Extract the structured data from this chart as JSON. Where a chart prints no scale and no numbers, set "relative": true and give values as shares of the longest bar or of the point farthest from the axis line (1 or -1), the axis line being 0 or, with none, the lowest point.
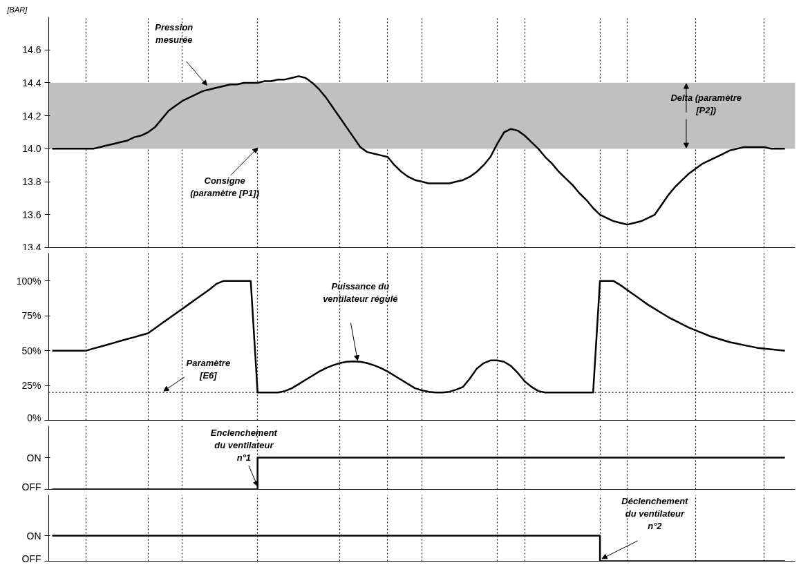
{
  "chart_data": [
    {
      "type": "line",
      "ylabel": "[BAR]",
      "categories": [
        null,
        null,
        null,
        null,
        null,
        null,
        null,
        null,
        null,
        null,
        null,
        null,
        null,
        null,
        null,
        null,
        null,
        null,
        null,
        null,
        null,
        null,
        null,
        null,
        null,
        null,
        null,
        null,
        null,
        null,
        null,
        null,
        null,
        null,
        null,
        null,
        null,
        null,
        null,
        null,
        null,
        null,
        null,
        null,
        null,
        null,
        null,
        null,
        null,
        null,
        null,
        null,
        null,
        null,
        null,
        null,
        null,
        null,
        null,
        null,
        null,
        null,
        null,
        null,
        null,
        null,
        null,
        null,
        null,
        null,
        null,
        null,
        null,
        null,
        null,
        null,
        null,
        null,
        null,
        null,
        null,
        null,
        null,
        null,
        null,
        null,
        null,
        null,
        null,
        null,
        null,
        null,
        null,
        null,
        null,
        null,
        null,
        null,
        null,
        null,
        null,
        null,
        null,
        null,
        null,
        null,
        null,
        null
      ],
      "series": [
        {
          "color": "#000000",
          "values": [
            14.0,
            14.0,
            14.0,
            14.0,
            14.0,
            14.0,
            14.0,
            14.01,
            14.02,
            14.03,
            14.04,
            14.05,
            14.07,
            14.08,
            14.1,
            14.13,
            14.18,
            14.23,
            14.26,
            14.29,
            14.31,
            14.33,
            14.35,
            14.36,
            14.37,
            14.38,
            14.39,
            14.39,
            14.4,
            14.4,
            14.4,
            14.41,
            14.41,
            14.42,
            14.42,
            14.43,
            14.44,
            14.43,
            14.4,
            14.36,
            14.31,
            14.25,
            14.19,
            14.13,
            14.07,
            14.01,
            13.98,
            13.97,
            13.96,
            13.95,
            13.9,
            13.86,
            13.83,
            13.81,
            13.8,
            13.79,
            13.79,
            13.79,
            13.79,
            13.8,
            13.81,
            13.83,
            13.86,
            13.9,
            13.95,
            14.03,
            14.1,
            14.12,
            14.11,
            14.08,
            14.04,
            14.0,
            13.95,
            13.91,
            13.86,
            13.82,
            13.78,
            13.73,
            13.69,
            13.64,
            13.6,
            13.58,
            13.56,
            13.55,
            13.54,
            13.55,
            13.56,
            13.58,
            13.6,
            13.66,
            13.72,
            13.77,
            13.81,
            13.85,
            13.88,
            13.91,
            13.93,
            13.95,
            13.97,
            13.99,
            14.0,
            14.01,
            14.01,
            14.01,
            14.01,
            14.0,
            14.0,
            14.0
          ]
        }
      ],
      "ylim": [
        13.4,
        14.8
      ],
      "yticks": [
        {
          "value": 13.4,
          "label": "13.4"
        },
        {
          "value": 13.6,
          "label": "13.6"
        },
        {
          "value": 13.8,
          "label": "13.8"
        },
        {
          "value": 14.0,
          "label": "14.0"
        },
        {
          "value": 14.2,
          "label": "14.2"
        },
        {
          "value": 14.4,
          "label": "14.4"
        },
        {
          "value": 14.6,
          "label": "14.6"
        }
      ],
      "tick_labels": "y",
      "grid": "x",
      "marker": "none",
      "line_style": "solid",
      "bands": [
        {
          "axis": "y",
          "from": 14.0,
          "to": 14.4,
          "color": "#c0c0c0"
        }
      ],
      "annotations": [
        "Pression mesurée",
        "Consigne (paramètre [P1])",
        "Delta (paramètre [P2])"
      ]
    },
    {
      "type": "line",
      "categories": [
        null,
        null,
        null,
        null,
        null,
        null,
        null,
        null,
        null,
        null,
        null,
        null,
        null,
        null,
        null,
        null,
        null,
        null,
        null,
        null,
        null,
        null,
        null,
        null,
        null,
        null,
        null,
        null,
        null,
        null,
        null,
        null,
        null,
        null,
        null,
        null,
        null,
        null,
        null,
        null,
        null,
        null,
        null,
        null,
        null,
        null,
        null,
        null,
        null,
        null,
        null,
        null,
        null,
        null,
        null,
        null,
        null,
        null,
        null,
        null,
        null,
        null,
        null,
        null,
        null,
        null,
        null,
        null,
        null,
        null,
        null,
        null,
        null,
        null,
        null,
        null,
        null,
        null,
        null,
        null,
        null,
        null,
        null,
        null,
        null,
        null,
        null,
        null,
        null,
        null,
        null,
        null,
        null,
        null,
        null,
        null,
        null,
        null,
        null,
        null,
        null,
        null,
        null,
        null,
        null,
        null,
        null,
        null
      ],
      "series": [
        {
          "color": "#000000",
          "values": [
            50,
            50,
            50,
            50,
            50,
            50,
            51.5,
            52.8,
            54.2,
            55.6,
            57,
            58.4,
            59.7,
            61.1,
            62.5,
            66,
            69.5,
            73,
            76.5,
            80,
            83.5,
            87,
            90.5,
            94,
            98,
            100,
            100,
            100,
            100,
            100,
            20,
            20,
            20,
            20,
            21,
            23,
            26,
            29,
            32,
            35,
            37.5,
            39.5,
            41,
            42,
            42.3,
            42,
            41,
            39.5,
            37.5,
            35,
            32,
            29,
            26,
            23,
            21.5,
            20.5,
            20,
            20,
            20.5,
            22,
            24,
            30,
            37,
            41,
            43,
            43,
            42,
            39,
            34,
            28,
            24,
            21,
            20,
            20,
            20,
            20,
            20,
            20,
            20,
            20,
            100,
            100,
            100,
            97,
            93.5,
            90,
            86.5,
            83,
            80,
            77,
            74,
            71.5,
            69,
            66.5,
            64.5,
            62.5,
            60.5,
            59,
            57.5,
            56,
            55,
            54,
            53,
            52,
            51.5,
            51,
            50.5,
            50
          ]
        }
      ],
      "ylim": [
        0,
        120
      ],
      "yticks": [
        {
          "value": 0,
          "label": "0%"
        },
        {
          "value": 25,
          "label": "25%"
        },
        {
          "value": 50,
          "label": "50%"
        },
        {
          "value": 75,
          "label": "75%"
        },
        {
          "value": 100,
          "label": "100%"
        }
      ],
      "tick_labels": "y",
      "grid": "x",
      "marker": "none",
      "line_style": "solid",
      "ref_lines": [
        {
          "axis": "y",
          "value": 20,
          "line_style": "dotted",
          "color": "#000000",
          "label": "Paramètre [E6]"
        }
      ],
      "annotations": [
        "Puissance du ventilateur régulé"
      ]
    },
    {
      "type": "step",
      "categories": [
        null,
        null,
        null,
        null,
        null,
        null,
        null,
        null,
        null,
        null,
        null,
        null,
        null,
        null,
        null,
        null,
        null,
        null,
        null,
        null,
        null,
        null,
        null,
        null,
        null,
        null,
        null,
        null,
        null,
        null,
        null,
        null,
        null,
        null,
        null,
        null,
        null,
        null,
        null,
        null,
        null,
        null,
        null,
        null,
        null,
        null,
        null,
        null,
        null,
        null,
        null,
        null,
        null,
        null,
        null,
        null,
        null,
        null,
        null,
        null,
        null,
        null,
        null,
        null,
        null,
        null,
        null,
        null,
        null,
        null,
        null,
        null,
        null,
        null,
        null,
        null,
        null,
        null,
        null,
        null,
        null,
        null,
        null,
        null,
        null,
        null,
        null,
        null,
        null,
        null,
        null,
        null,
        null,
        null,
        null,
        null,
        null,
        null,
        null,
        null,
        null,
        null,
        null,
        null,
        null,
        null,
        null,
        null
      ],
      "y_categories": [
        "ON",
        "OFF"
      ],
      "relative": true,
      "series": [
        {
          "color": "#000000",
          "values": [
            0,
            0,
            0,
            0,
            0,
            0,
            0,
            0,
            0,
            0,
            0,
            0,
            0,
            0,
            0,
            0,
            0,
            0,
            0,
            0,
            0,
            0,
            0,
            0,
            0,
            0,
            0,
            0,
            0,
            0,
            1,
            1,
            1,
            1,
            1,
            1,
            1,
            1,
            1,
            1,
            1,
            1,
            1,
            1,
            1,
            1,
            1,
            1,
            1,
            1,
            1,
            1,
            1,
            1,
            1,
            1,
            1,
            1,
            1,
            1,
            1,
            1,
            1,
            1,
            1,
            1,
            1,
            1,
            1,
            1,
            1,
            1,
            1,
            1,
            1,
            1,
            1,
            1,
            1,
            1,
            1,
            1,
            1,
            1,
            1,
            1,
            1,
            1,
            1,
            1,
            1,
            1,
            1,
            1,
            1,
            1,
            1,
            1,
            1,
            1,
            1,
            1,
            1,
            1,
            1,
            1,
            1,
            1
          ]
        }
      ],
      "tick_labels": "y",
      "grid": "x",
      "marker": "none",
      "line_style": "solid",
      "annotations": [
        "Enclenchement du ventilateur n°1"
      ]
    },
    {
      "type": "step",
      "categories": [
        null,
        null,
        null,
        null,
        null,
        null,
        null,
        null,
        null,
        null,
        null,
        null,
        null,
        null,
        null,
        null,
        null,
        null,
        null,
        null,
        null,
        null,
        null,
        null,
        null,
        null,
        null,
        null,
        null,
        null,
        null,
        null,
        null,
        null,
        null,
        null,
        null,
        null,
        null,
        null,
        null,
        null,
        null,
        null,
        null,
        null,
        null,
        null,
        null,
        null,
        null,
        null,
        null,
        null,
        null,
        null,
        null,
        null,
        null,
        null,
        null,
        null,
        null,
        null,
        null,
        null,
        null,
        null,
        null,
        null,
        null,
        null,
        null,
        null,
        null,
        null,
        null,
        null,
        null,
        null,
        null,
        null,
        null,
        null,
        null,
        null,
        null,
        null,
        null,
        null,
        null,
        null,
        null,
        null,
        null,
        null,
        null,
        null,
        null,
        null,
        null,
        null,
        null,
        null,
        null,
        null,
        null,
        null
      ],
      "y_categories": [
        "ON",
        "OFF"
      ],
      "relative": true,
      "series": [
        {
          "color": "#000000",
          "values": [
            1,
            1,
            1,
            1,
            1,
            1,
            1,
            1,
            1,
            1,
            1,
            1,
            1,
            1,
            1,
            1,
            1,
            1,
            1,
            1,
            1,
            1,
            1,
            1,
            1,
            1,
            1,
            1,
            1,
            1,
            1,
            1,
            1,
            1,
            1,
            1,
            1,
            1,
            1,
            1,
            1,
            1,
            1,
            1,
            1,
            1,
            1,
            1,
            1,
            1,
            1,
            1,
            1,
            1,
            1,
            1,
            1,
            1,
            1,
            1,
            1,
            1,
            1,
            1,
            1,
            1,
            1,
            1,
            1,
            1,
            1,
            1,
            1,
            1,
            1,
            1,
            1,
            1,
            1,
            1,
            0,
            0,
            0,
            0,
            0,
            0,
            0,
            0,
            0,
            0,
            0,
            0,
            0,
            0,
            0,
            0,
            0,
            0,
            0,
            0,
            0,
            0,
            0,
            0,
            0,
            0,
            0,
            0
          ]
        }
      ],
      "tick_labels": "y",
      "grid": "x",
      "marker": "none",
      "line_style": "solid",
      "annotations": [
        "Déclenchement du ventilateur n°2"
      ]
    }
  ]
}
